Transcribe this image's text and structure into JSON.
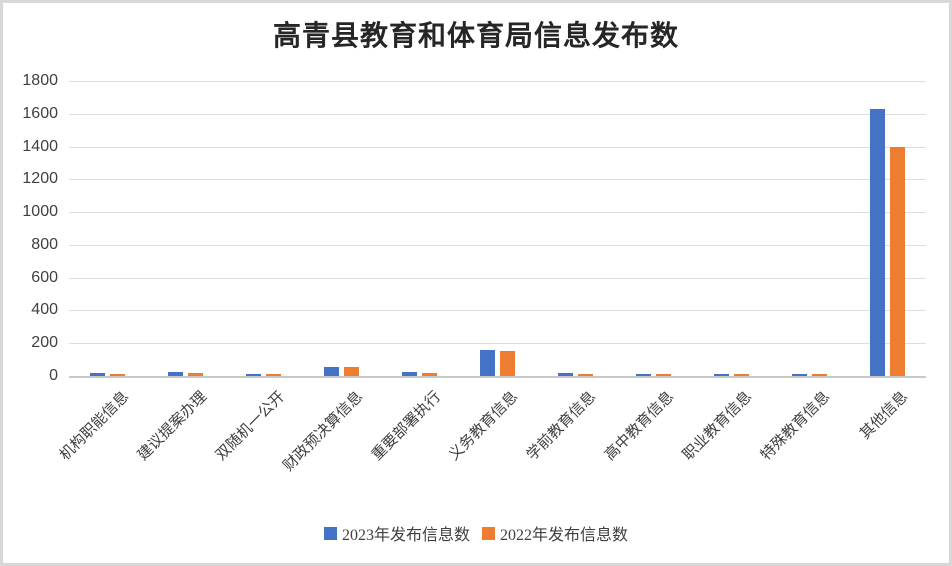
{
  "title": "高青县教育和体育局信息发布数",
  "colors": {
    "series_2023": "#4472c4",
    "series_2022": "#ed7d31",
    "gridline": "#dedede",
    "axis_line": "#c8c8c8",
    "axis_text": "#404040",
    "title_text": "#262626"
  },
  "chart_data": {
    "type": "bar",
    "title": "高青县教育和体育局信息发布数",
    "categories": [
      "机构职能信息",
      "建议提案办理",
      "双随机一公开",
      "财政预决算信息",
      "重要部署执行",
      "义务教育信息",
      "学前教育信息",
      "高中教育信息",
      "职业教育信息",
      "特殊教育信息",
      "其他信息"
    ],
    "series": [
      {
        "name": "2023年发布信息数",
        "color": "#4472c4",
        "values": [
          20,
          25,
          15,
          55,
          25,
          160,
          20,
          12,
          12,
          12,
          1630
        ]
      },
      {
        "name": "2022年发布信息数",
        "color": "#ed7d31",
        "values": [
          10,
          20,
          10,
          55,
          20,
          155,
          10,
          10,
          10,
          10,
          1400
        ]
      }
    ],
    "xlabel": "",
    "ylabel": "",
    "ylim": [
      0,
      1800
    ],
    "ytick_interval": 200,
    "yticks": [
      0,
      200,
      400,
      600,
      800,
      1000,
      1200,
      1400,
      1600,
      1800
    ],
    "grid": true,
    "legend_position": "bottom",
    "x_label_rotation_deg": 45
  },
  "legend": {
    "items": [
      {
        "label": "2023年发布信息数",
        "color": "#4472c4"
      },
      {
        "label": "2022年发布信息数",
        "color": "#ed7d31"
      }
    ]
  }
}
